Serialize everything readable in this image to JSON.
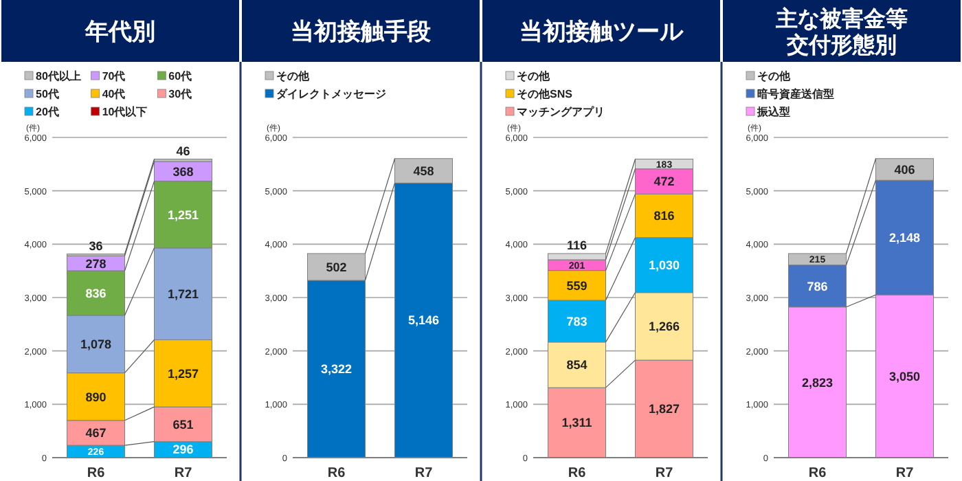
{
  "chart_data": [
    {
      "type": "bar",
      "title": "年代別",
      "ylabel": "(件)",
      "categories": [
        "R6",
        "R7"
      ],
      "stacked": true,
      "legend": "top",
      "grid": "y",
      "ylim": [
        0,
        6000
      ],
      "yticks": [
        {
          "value": 0,
          "label": "0"
        },
        {
          "value": 1000,
          "label": "1,000"
        },
        {
          "value": 2000,
          "label": "2,000"
        },
        {
          "value": 3000,
          "label": "3,000"
        },
        {
          "value": 4000,
          "label": "4,000"
        },
        {
          "value": 5000,
          "label": "5,000"
        },
        {
          "value": 6000,
          "label": "6,000"
        }
      ],
      "series": [
        {
          "name": "10代以下",
          "color": "#c00000",
          "values": [
            5,
            4
          ],
          "value_labels": [
            null,
            null
          ]
        },
        {
          "name": "20代",
          "color": "#00b0f0",
          "values": [
            226,
            296
          ],
          "value_labels": [
            "226",
            "296"
          ]
        },
        {
          "name": "30代",
          "color": "#ff9999",
          "values": [
            467,
            651
          ],
          "value_labels": [
            "467",
            "651"
          ]
        },
        {
          "name": "40代",
          "color": "#ffc000",
          "values": [
            890,
            1257
          ],
          "value_labels": [
            "890",
            "1,257"
          ]
        },
        {
          "name": "50代",
          "color": "#8eaadb",
          "values": [
            1078,
            1721
          ],
          "value_labels": [
            "1,078",
            "1,721"
          ]
        },
        {
          "name": "60代",
          "color": "#70ad47",
          "values": [
            836,
            1251
          ],
          "value_labels": [
            "836",
            "1,251"
          ]
        },
        {
          "name": "70代",
          "color": "#cc99ff",
          "values": [
            278,
            368
          ],
          "value_labels": [
            "278",
            "368"
          ]
        },
        {
          "name": "80代以上",
          "color": "#bfbfbf",
          "values": [
            36,
            46
          ],
          "value_labels": [
            "36",
            "46"
          ]
        }
      ]
    },
    {
      "type": "bar",
      "title": "当初接触手段",
      "ylabel": "(件)",
      "categories": [
        "R6",
        "R7"
      ],
      "stacked": true,
      "legend": "top",
      "grid": "y",
      "ylim": [
        0,
        6000
      ],
      "yticks": [
        {
          "value": 0,
          "label": "0"
        },
        {
          "value": 1000,
          "label": "1,000"
        },
        {
          "value": 2000,
          "label": "2,000"
        },
        {
          "value": 3000,
          "label": "3,000"
        },
        {
          "value": 4000,
          "label": "4,000"
        },
        {
          "value": 5000,
          "label": "5,000"
        },
        {
          "value": 6000,
          "label": "6,000"
        }
      ],
      "series": [
        {
          "name": "ダイレクトメッセージ",
          "color": "#0070c0",
          "values": [
            3322,
            5146
          ],
          "value_labels": [
            "3,322",
            "5,146"
          ]
        },
        {
          "name": "その他",
          "color": "#bfbfbf",
          "values": [
            502,
            458
          ],
          "value_labels": [
            "502",
            "458"
          ]
        }
      ]
    },
    {
      "type": "bar",
      "title": "当初接触ツール",
      "ylabel": "(件)",
      "categories": [
        "R6",
        "R7"
      ],
      "stacked": true,
      "legend": "top",
      "grid": "y",
      "ylim": [
        0,
        6000
      ],
      "yticks": [
        {
          "value": 0,
          "label": "0"
        },
        {
          "value": 1000,
          "label": "1,000"
        },
        {
          "value": 2000,
          "label": "2,000"
        },
        {
          "value": 3000,
          "label": "3,000"
        },
        {
          "value": 4000,
          "label": "4,000"
        },
        {
          "value": 5000,
          "label": "5,000"
        },
        {
          "value": 6000,
          "label": "6,000"
        }
      ],
      "series": [
        {
          "name": "マッチングアプリ",
          "color": "#ff9999",
          "values": [
            1311,
            1827
          ],
          "value_labels": [
            "1,311",
            "1,827"
          ]
        },
        {
          "color": "#ffe699",
          "values": [
            854,
            1266
          ],
          "value_labels": [
            "854",
            "1,266"
          ]
        },
        {
          "color": "#00b0f0",
          "values": [
            783,
            1030
          ],
          "value_labels": [
            "783",
            "1,030"
          ]
        },
        {
          "name": "その他SNS",
          "color": "#ffc000",
          "values": [
            559,
            816
          ],
          "value_labels": [
            "559",
            "816"
          ]
        },
        {
          "color": "#ff66cc",
          "values": [
            201,
            472
          ],
          "value_labels": [
            "201",
            "472"
          ]
        },
        {
          "name": "その他",
          "color": "#d9d9d9",
          "values": [
            116,
            183
          ],
          "value_labels": [
            "116",
            "183"
          ]
        }
      ]
    },
    {
      "type": "bar",
      "title": "主な被害金等交付形態別",
      "ylabel": "(件)",
      "categories": [
        "R6",
        "R7"
      ],
      "stacked": true,
      "legend": "top",
      "grid": "y",
      "ylim": [
        0,
        6000
      ],
      "yticks": [
        {
          "value": 0,
          "label": "0"
        },
        {
          "value": 1000,
          "label": "1,000"
        },
        {
          "value": 2000,
          "label": "2,000"
        },
        {
          "value": 3000,
          "label": "3,000"
        },
        {
          "value": 4000,
          "label": "4,000"
        },
        {
          "value": 5000,
          "label": "5,000"
        },
        {
          "value": 6000,
          "label": "6,000"
        }
      ],
      "series": [
        {
          "name": "振込型",
          "color": "#ff99ff",
          "values": [
            2823,
            3050
          ],
          "value_labels": [
            "2,823",
            "3,050"
          ]
        },
        {
          "name": "暗号資産送信型",
          "color": "#4472c4",
          "values": [
            786,
            2148
          ],
          "value_labels": [
            "786",
            "2,148"
          ]
        },
        {
          "name": "その他",
          "color": "#bfbfbf",
          "values": [
            215,
            406
          ],
          "value_labels": [
            "215",
            "406"
          ]
        }
      ]
    }
  ]
}
